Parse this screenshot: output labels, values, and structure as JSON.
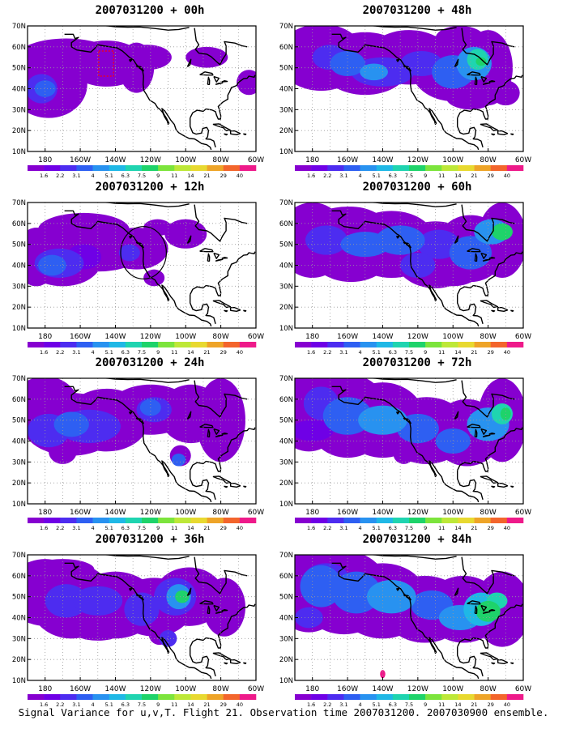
{
  "caption": "Signal Variance for u,v,T. Flight 21. Observation time 2007031200. 2007030900 ensemble.",
  "colors": {
    "levels": [
      "#8600d0",
      "#6f00e6",
      "#4d2cf0",
      "#2e5ff2",
      "#2892f0",
      "#1fb8e6",
      "#1fd4b0",
      "#1ed36a",
      "#7ce43c",
      "#bde838",
      "#e8d930",
      "#eea428",
      "#f3652c",
      "#ee1a8a"
    ],
    "coast": "#000000",
    "grid": "#9a9a9a",
    "marker_red": "#ff0000"
  },
  "chart_data": [
    {
      "type": "heatmap",
      "title": "2007031200 + 00h",
      "map_id": "00h",
      "xlabel": "",
      "ylabel": "",
      "xlim": [
        -190,
        -60
      ],
      "ylim": [
        10,
        70
      ],
      "xticks": [
        "180",
        "160W",
        "140W",
        "120W",
        "100W",
        "80W",
        "60W"
      ],
      "yticks": [
        "10N",
        "20N",
        "30N",
        "40N",
        "50N",
        "60N",
        "70N"
      ],
      "colorbar_ticks": [
        "1.6",
        "2.2",
        "3.1",
        "4",
        "5.1",
        "6.3",
        "7.5",
        "9",
        "11",
        "14",
        "21",
        "29",
        "40"
      ],
      "grid": true
    },
    {
      "type": "heatmap",
      "title": "2007031200 + 48h",
      "map_id": "48h",
      "xlabel": "",
      "ylabel": "",
      "xlim": [
        -190,
        -60
      ],
      "ylim": [
        10,
        70
      ],
      "xticks": [
        "180",
        "160W",
        "140W",
        "120W",
        "100W",
        "80W",
        "60W"
      ],
      "yticks": [
        "10N",
        "20N",
        "30N",
        "40N",
        "50N",
        "60N",
        "70N"
      ],
      "colorbar_ticks": [
        "1.6",
        "2.2",
        "3.1",
        "4",
        "5.1",
        "6.3",
        "7.5",
        "9",
        "11",
        "14",
        "21",
        "29",
        "40"
      ],
      "grid": true
    },
    {
      "type": "heatmap",
      "title": "2007031200 + 12h",
      "map_id": "12h",
      "xlabel": "",
      "ylabel": "",
      "xlim": [
        -190,
        -60
      ],
      "ylim": [
        10,
        70
      ],
      "xticks": [
        "180",
        "160W",
        "140W",
        "120W",
        "100W",
        "80W",
        "60W"
      ],
      "yticks": [
        "10N",
        "20N",
        "30N",
        "40N",
        "50N",
        "60N",
        "70N"
      ],
      "colorbar_ticks": [
        "1.6",
        "2.2",
        "3.1",
        "4",
        "5.1",
        "6.3",
        "7.5",
        "9",
        "11",
        "14",
        "21",
        "29",
        "40"
      ],
      "grid": true
    },
    {
      "type": "heatmap",
      "title": "2007031200 + 60h",
      "map_id": "60h",
      "xlabel": "",
      "ylabel": "",
      "xlim": [
        -190,
        -60
      ],
      "ylim": [
        10,
        70
      ],
      "xticks": [
        "180",
        "160W",
        "140W",
        "120W",
        "100W",
        "80W",
        "60W"
      ],
      "yticks": [
        "10N",
        "20N",
        "30N",
        "40N",
        "50N",
        "60N",
        "70N"
      ],
      "colorbar_ticks": [
        "1.6",
        "2.2",
        "3.1",
        "4",
        "5.1",
        "6.3",
        "7.5",
        "9",
        "11",
        "14",
        "21",
        "29",
        "40"
      ],
      "grid": true
    },
    {
      "type": "heatmap",
      "title": "2007031200 + 24h",
      "map_id": "24h",
      "xlabel": "",
      "ylabel": "",
      "xlim": [
        -190,
        -60
      ],
      "ylim": [
        10,
        70
      ],
      "xticks": [
        "180",
        "160W",
        "140W",
        "120W",
        "100W",
        "80W",
        "60W"
      ],
      "yticks": [
        "10N",
        "20N",
        "30N",
        "40N",
        "50N",
        "60N",
        "70N"
      ],
      "colorbar_ticks": [
        "1.6",
        "2.2",
        "3.1",
        "4",
        "5.1",
        "6.3",
        "7.5",
        "9",
        "11",
        "14",
        "21",
        "29",
        "40"
      ],
      "grid": true
    },
    {
      "type": "heatmap",
      "title": "2007031200 + 72h",
      "map_id": "72h",
      "xlabel": "",
      "ylabel": "",
      "xlim": [
        -190,
        -60
      ],
      "ylim": [
        10,
        70
      ],
      "xticks": [
        "180",
        "160W",
        "140W",
        "120W",
        "100W",
        "80W",
        "60W"
      ],
      "yticks": [
        "10N",
        "20N",
        "30N",
        "40N",
        "50N",
        "60N",
        "70N"
      ],
      "colorbar_ticks": [
        "1.6",
        "2.2",
        "3.1",
        "4",
        "5.1",
        "6.3",
        "7.5",
        "9",
        "11",
        "14",
        "21",
        "29",
        "40"
      ],
      "grid": true
    },
    {
      "type": "heatmap",
      "title": "2007031200 + 36h",
      "map_id": "36h",
      "xlabel": "",
      "ylabel": "",
      "xlim": [
        -190,
        -60
      ],
      "ylim": [
        10,
        70
      ],
      "xticks": [
        "180",
        "160W",
        "140W",
        "120W",
        "100W",
        "80W",
        "60W"
      ],
      "yticks": [
        "10N",
        "20N",
        "30N",
        "40N",
        "50N",
        "60N",
        "70N"
      ],
      "colorbar_ticks": [
        "1.6",
        "2.2",
        "3.1",
        "4",
        "5.1",
        "6.3",
        "7.5",
        "9",
        "11",
        "14",
        "21",
        "29",
        "40"
      ],
      "grid": true
    },
    {
      "type": "heatmap",
      "title": "2007031200 + 84h",
      "map_id": "84h",
      "xlabel": "",
      "ylabel": "",
      "xlim": [
        -190,
        -60
      ],
      "ylim": [
        10,
        70
      ],
      "xticks": [
        "180",
        "160W",
        "140W",
        "120W",
        "100W",
        "80W",
        "60W"
      ],
      "yticks": [
        "10N",
        "20N",
        "30N",
        "40N",
        "50N",
        "60N",
        "70N"
      ],
      "colorbar_ticks": [
        "1.6",
        "2.2",
        "3.1",
        "4",
        "5.1",
        "6.3",
        "7.5",
        "9",
        "11",
        "14",
        "21",
        "29",
        "40"
      ],
      "grid": true
    }
  ]
}
